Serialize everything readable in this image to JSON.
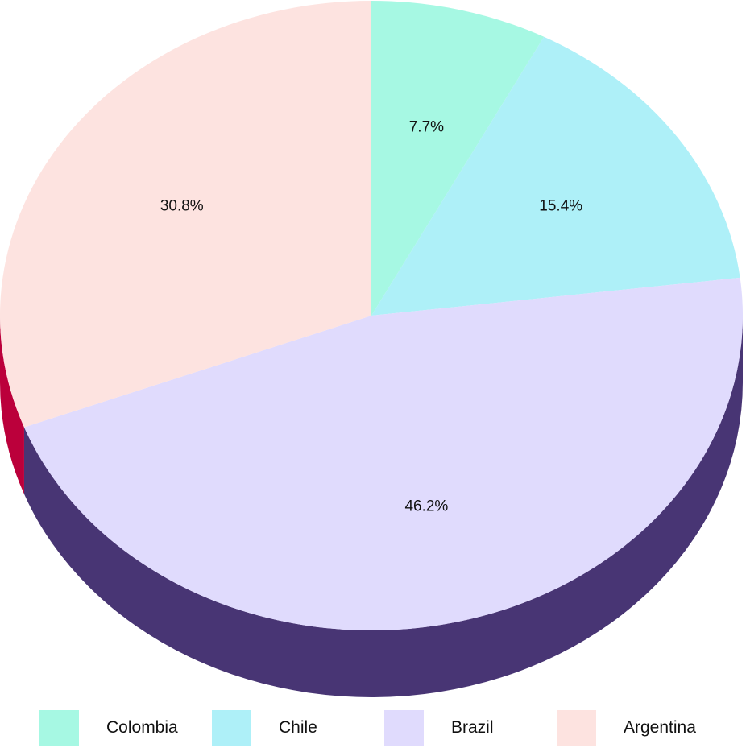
{
  "chart_data": {
    "type": "pie",
    "style": "3d",
    "title": "",
    "start": "top, clockwise",
    "slices": [
      {
        "label": "Colombia",
        "value": 7.7,
        "display": "7.7%",
        "color": "#a6f8e3",
        "side": "#1f8f74"
      },
      {
        "label": "Chile",
        "value": 15.4,
        "display": "15.4%",
        "color": "#aef0f8",
        "side": "#2b8ea0"
      },
      {
        "label": "Brazil",
        "value": 46.2,
        "display": "46.2%",
        "color": "#e0dbfd",
        "side": "#483574"
      },
      {
        "label": "Argentina",
        "value": 30.8,
        "display": "30.8%",
        "color": "#fde3e0",
        "side": "#bb003b"
      }
    ],
    "legend": {
      "position": "bottom"
    }
  }
}
